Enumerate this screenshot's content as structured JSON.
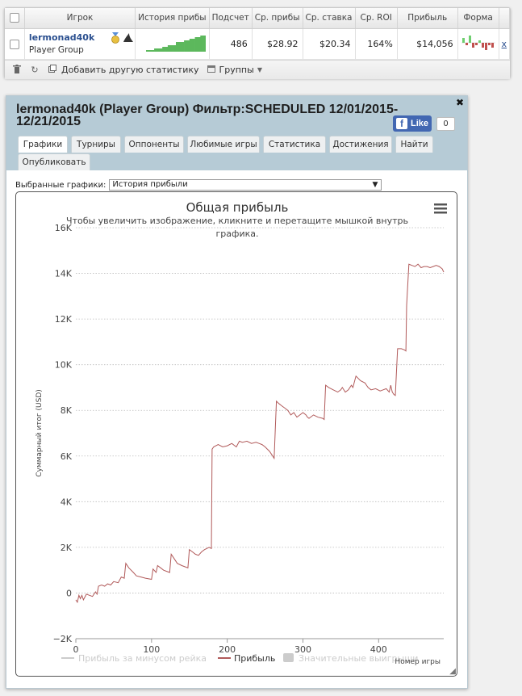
{
  "player_table": {
    "headers": [
      "Игрок",
      "История прибы",
      "Подсчет",
      "Ср. прибы",
      "Ср. ставка",
      "Ср. ROI",
      "Прибыль",
      "Форма"
    ],
    "row": {
      "name": "lermonad40k",
      "group": "Player Group",
      "count": "486",
      "avg_profit": "$28.92",
      "avg_stake": "$20.34",
      "avg_roi": "164%",
      "profit": "$14,056",
      "remove_label": "x",
      "sparkline": [
        1,
        1,
        1,
        2,
        2,
        2,
        3,
        3,
        4,
        4,
        4,
        6,
        6,
        6,
        7,
        7,
        8,
        8,
        9,
        9,
        10,
        10
      ],
      "form": [
        2,
        -1,
        3,
        -2,
        -1,
        1,
        -2,
        -3,
        -1,
        -2
      ]
    },
    "toolbar": {
      "add_stats_label": "Добавить другую статистику",
      "groups_label": "Группы"
    },
    "colors": {
      "sparkline": "#5cb85c",
      "form_positive": "#6fcf70",
      "form_negative": "#c0504d"
    }
  },
  "report": {
    "title": "lermonad40k (Player Group) Фильтр:SCHEDULED 12/01/2015-12/21/2015",
    "like_label": "Like",
    "like_count": "0",
    "tabs": [
      "Графики",
      "Турниры",
      "Оппоненты",
      "Любимые игры",
      "Статистика",
      "Достижения",
      "Найти",
      "Опубликовать"
    ],
    "active_tab": "Графики",
    "selected_charts_label": "Выбранные графики:",
    "selected_chart": "История прибыли"
  },
  "chart_data": {
    "type": "line",
    "title": "Общая прибыль",
    "subtitle": "Чтобы увеличить изображение, кликните и перетащите мышкой внутрь графика.",
    "xlabel": "Номер игры",
    "ylabel": "Суммарный итог (USD)",
    "xlim": [
      0,
      486
    ],
    "ylim": [
      -2000,
      16000
    ],
    "x_ticks": [
      0,
      100,
      200,
      300,
      400
    ],
    "y_ticks": [
      -2000,
      0,
      2000,
      4000,
      6000,
      8000,
      10000,
      12000,
      14000,
      16000
    ],
    "y_tick_labels": [
      "−2K",
      "0",
      "2K",
      "4K",
      "6K",
      "8K",
      "10K",
      "12K",
      "14K",
      "16K"
    ],
    "grid": true,
    "legend_position": "bottom",
    "series": [
      {
        "name": "Прибыль за минусом рейка",
        "color": "#cccccc",
        "visible": false,
        "x": [],
        "y": []
      },
      {
        "name": "Прибыль",
        "color": "#b15a5a",
        "visible": true,
        "x": [
          0,
          2,
          4,
          6,
          8,
          10,
          14,
          18,
          22,
          26,
          28,
          30,
          34,
          38,
          42,
          46,
          50,
          56,
          60,
          64,
          66,
          70,
          76,
          80,
          86,
          92,
          100,
          102,
          106,
          108,
          112,
          116,
          120,
          124,
          126,
          128,
          134,
          140,
          144,
          148,
          150,
          154,
          158,
          162,
          166,
          170,
          176,
          179,
          180,
          182,
          188,
          194,
          200,
          206,
          212,
          216,
          220,
          226,
          232,
          238,
          242,
          246,
          250,
          256,
          260,
          262,
          264,
          265,
          268,
          272,
          276,
          280,
          284,
          288,
          292,
          296,
          300,
          304,
          306,
          308,
          314,
          320,
          326,
          328,
          330,
          334,
          340,
          346,
          350,
          352,
          356,
          360,
          364,
          366,
          370,
          376,
          382,
          384,
          386,
          390,
          396,
          402,
          406,
          410,
          414,
          416,
          418,
          420,
          422,
          425,
          430,
          434,
          436,
          437,
          440,
          444,
          448,
          452,
          456,
          460,
          464,
          468,
          472,
          476,
          480,
          484,
          486
        ],
        "y": [
          -300,
          -400,
          -100,
          -250,
          -100,
          -300,
          -50,
          -100,
          -150,
          50,
          -50,
          300,
          350,
          300,
          400,
          350,
          500,
          450,
          700,
          650,
          1300,
          1100,
          900,
          750,
          700,
          650,
          600,
          1050,
          900,
          1200,
          1100,
          1000,
          950,
          900,
          1700,
          1600,
          1300,
          1200,
          1150,
          1100,
          1900,
          1800,
          1700,
          1650,
          1800,
          1900,
          2000,
          1950,
          6300,
          6400,
          6500,
          6400,
          6450,
          6550,
          6400,
          6650,
          6600,
          6650,
          6550,
          6600,
          6550,
          6500,
          6400,
          6200,
          6000,
          5900,
          7600,
          8400,
          8300,
          8200,
          8100,
          8000,
          7800,
          7900,
          7700,
          7800,
          7900,
          7800,
          7700,
          7650,
          7800,
          7700,
          7650,
          7600,
          9100,
          9000,
          8900,
          8800,
          8900,
          9000,
          8800,
          8900,
          9100,
          9000,
          9500,
          9300,
          9200,
          9100,
          9000,
          8900,
          8950,
          8850,
          8900,
          8950,
          8800,
          9100,
          8800,
          8700,
          8650,
          10700,
          10700,
          10650,
          10600,
          12600,
          14400,
          14350,
          14300,
          14400,
          14250,
          14300,
          14300,
          14250,
          14300,
          14350,
          14300,
          14200,
          14050
        ]
      },
      {
        "name": "Значительные выигрыши",
        "color": "#cccccc",
        "visible": false,
        "x": [],
        "y": []
      }
    ]
  }
}
